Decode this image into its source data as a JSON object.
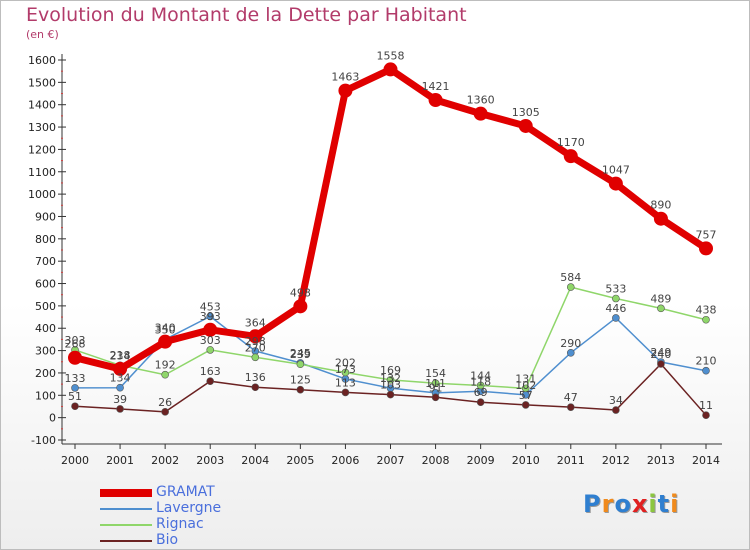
{
  "title": "Evolution du Montant de la Dette par Habitant",
  "unit": "(en €)",
  "logo": "Proxiti",
  "chart_data": {
    "type": "line",
    "x": [
      2000,
      2001,
      2002,
      2003,
      2004,
      2005,
      2006,
      2007,
      2008,
      2009,
      2010,
      2011,
      2012,
      2013,
      2014
    ],
    "ylim": [
      -100,
      1600
    ],
    "yticks": [
      -100,
      0,
      100,
      200,
      300,
      400,
      500,
      600,
      700,
      800,
      900,
      1000,
      1100,
      1200,
      1300,
      1400,
      1500,
      1600
    ],
    "grid": false,
    "legend_position": "bottom-left",
    "series": [
      {
        "name": "GRAMAT",
        "color": "#e00000",
        "values": [
          268,
          218,
          340,
          393,
          364,
          498,
          1463,
          1558,
          1421,
          1360,
          1305,
          1170,
          1047,
          890,
          757
        ]
      },
      {
        "name": "Lavergne",
        "color": "#4f8fcf",
        "values": [
          133,
          134,
          350,
          453,
          298,
          245,
          173,
          132,
          111,
          118,
          102,
          290,
          446,
          249,
          210
        ]
      },
      {
        "name": "Rignac",
        "color": "#8fd66a",
        "values": [
          303,
          234,
          192,
          303,
          270,
          239,
          202,
          169,
          154,
          144,
          131,
          584,
          533,
          489,
          438
        ]
      },
      {
        "name": "Bio",
        "color": "#6b2222",
        "values": [
          51,
          39,
          26,
          163,
          136,
          125,
          113,
          103,
          91,
          69,
          57,
          47,
          34,
          240,
          11
        ]
      }
    ]
  }
}
